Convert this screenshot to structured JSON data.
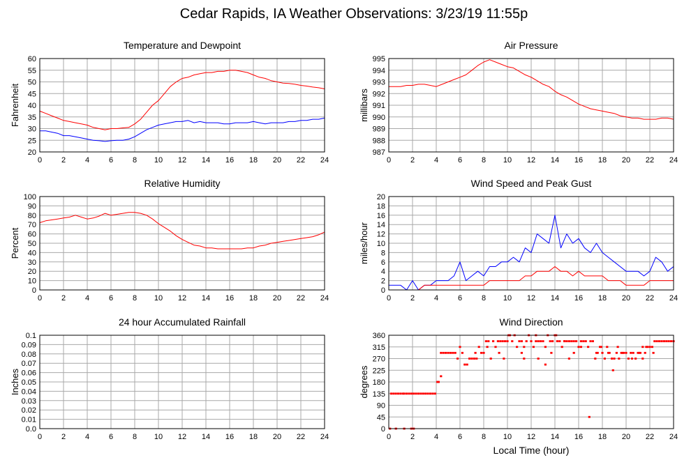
{
  "page": {
    "title": "Cedar Rapids, IA Weather Observations: 3/23/19 11:55p",
    "x_axis_label": "Local Time (hour)"
  },
  "x_ticks": [
    "0",
    "2",
    "4",
    "6",
    "8",
    "10",
    "12",
    "14",
    "16",
    "18",
    "20",
    "22",
    "24"
  ],
  "colors": {
    "red": "#ff0000",
    "blue": "#0000ff",
    "grid": "#a8a8a8",
    "frame": "#000000"
  },
  "chart_data": [
    {
      "id": "temp",
      "type": "line",
      "title": "Temperature and Dewpoint",
      "ylabel": "Fahrenheit",
      "xlim": [
        0,
        24
      ],
      "ylim": [
        20,
        60
      ],
      "y_ticks": [
        "60",
        "55",
        "50",
        "45",
        "40",
        "35",
        "30",
        "25",
        "20"
      ],
      "series": [
        {
          "color": "#ff0000",
          "x": [
            0,
            0.5,
            1,
            1.5,
            2,
            2.5,
            3,
            3.5,
            4,
            4.5,
            5,
            5.5,
            6,
            6.5,
            7,
            7.5,
            8,
            8.5,
            9,
            9.5,
            10,
            10.5,
            11,
            11.5,
            12,
            12.5,
            13,
            13.5,
            14,
            14.5,
            15,
            15.5,
            16,
            16.5,
            17,
            17.5,
            18,
            18.5,
            19,
            19.5,
            20,
            20.5,
            21,
            21.5,
            22,
            22.5,
            23,
            23.5,
            24
          ],
          "y": [
            37.5,
            36.5,
            35.5,
            34.5,
            33.5,
            33,
            32.5,
            32,
            31.5,
            30.5,
            30,
            29.5,
            30,
            30,
            30.3,
            30.5,
            32,
            34,
            37,
            40,
            42,
            45,
            48,
            50,
            51.5,
            52,
            53,
            53.5,
            54,
            54,
            54.5,
            54.5,
            55,
            55,
            54.5,
            54,
            53,
            52,
            51.5,
            50.5,
            50,
            49.5,
            49.3,
            49,
            48.5,
            48.2,
            47.8,
            47.5,
            47
          ]
        },
        {
          "color": "#0000ff",
          "x": [
            0,
            0.5,
            1,
            1.5,
            2,
            2.5,
            3,
            3.5,
            4,
            4.5,
            5,
            5.5,
            6,
            6.5,
            7,
            7.5,
            8,
            8.5,
            9,
            9.5,
            10,
            10.5,
            11,
            11.5,
            12,
            12.5,
            13,
            13.5,
            14,
            14.5,
            15,
            15.5,
            16,
            16.5,
            17,
            17.5,
            18,
            18.5,
            19,
            19.5,
            20,
            20.5,
            21,
            21.5,
            22,
            22.5,
            23,
            23.5,
            24
          ],
          "y": [
            29,
            29,
            28.5,
            28,
            27,
            27,
            26.5,
            26,
            25.5,
            25,
            24.8,
            24.5,
            24.8,
            25,
            25,
            25.5,
            26.5,
            28,
            29.5,
            30.5,
            31.5,
            32,
            32.5,
            33,
            33,
            33.5,
            32.5,
            33,
            32.5,
            32.5,
            32.5,
            32,
            32,
            32.5,
            32.5,
            32.5,
            33,
            32.5,
            32,
            32.5,
            32.5,
            32.5,
            33,
            33,
            33.5,
            33.5,
            34,
            34,
            34.5
          ]
        }
      ]
    },
    {
      "id": "pres",
      "type": "line",
      "title": "Air Pressure",
      "ylabel": "millibars",
      "xlim": [
        0,
        24
      ],
      "ylim": [
        987,
        995
      ],
      "y_ticks": [
        "995",
        "994",
        "993",
        "992",
        "991",
        "990",
        "989",
        "988",
        "987"
      ],
      "series": [
        {
          "color": "#ff0000",
          "x": [
            0,
            0.5,
            1,
            1.5,
            2,
            2.5,
            3,
            3.5,
            4,
            4.5,
            5,
            5.5,
            6,
            6.5,
            7,
            7.5,
            8,
            8.5,
            9,
            9.5,
            10,
            10.5,
            11,
            11.5,
            12,
            12.5,
            13,
            13.5,
            14,
            14.5,
            15,
            15.5,
            16,
            16.5,
            17,
            17.5,
            18,
            18.5,
            19,
            19.5,
            20,
            20.5,
            21,
            21.5,
            22,
            22.5,
            23,
            23.5,
            24
          ],
          "y": [
            992.6,
            992.6,
            992.6,
            992.7,
            992.7,
            992.8,
            992.8,
            992.7,
            992.6,
            992.8,
            993,
            993.2,
            993.4,
            993.6,
            994,
            994.4,
            994.7,
            994.9,
            994.7,
            994.5,
            994.3,
            994.2,
            993.9,
            993.6,
            993.4,
            993.1,
            992.8,
            992.6,
            992.2,
            991.9,
            991.7,
            991.4,
            991.1,
            990.9,
            990.7,
            990.6,
            990.5,
            990.4,
            990.3,
            990.1,
            990,
            989.9,
            989.9,
            989.8,
            989.8,
            989.8,
            989.9,
            989.9,
            989.8
          ]
        }
      ]
    },
    {
      "id": "rh",
      "type": "line",
      "title": "Relative Humidity",
      "ylabel": "Percent",
      "xlim": [
        0,
        24
      ],
      "ylim": [
        0,
        100
      ],
      "y_ticks": [
        "100",
        "90",
        "80",
        "70",
        "60",
        "50",
        "40",
        "30",
        "20",
        "10",
        "0"
      ],
      "series": [
        {
          "color": "#ff0000",
          "x": [
            0,
            0.5,
            1,
            1.5,
            2,
            2.5,
            3,
            3.5,
            4,
            4.5,
            5,
            5.5,
            6,
            6.5,
            7,
            7.5,
            8,
            8.5,
            9,
            9.5,
            10,
            10.5,
            11,
            11.5,
            12,
            12.5,
            13,
            13.5,
            14,
            14.5,
            15,
            15.5,
            16,
            16.5,
            17,
            17.5,
            18,
            18.5,
            19,
            19.5,
            20,
            20.5,
            21,
            21.5,
            22,
            22.5,
            23,
            23.5,
            24
          ],
          "y": [
            72,
            74,
            75,
            76,
            77,
            78,
            80,
            78,
            76,
            77,
            79,
            82,
            80,
            81,
            82,
            83,
            83,
            82,
            80,
            76,
            71,
            67,
            63,
            58,
            54,
            51,
            48,
            47,
            45,
            45,
            44,
            44,
            44,
            44,
            44,
            45,
            45,
            47,
            48,
            50,
            51,
            52,
            53,
            54,
            55,
            56,
            57,
            59,
            62
          ]
        }
      ]
    },
    {
      "id": "wind",
      "type": "line",
      "title": "Wind Speed and Peak Gust",
      "ylabel": "miles/hour",
      "xlim": [
        0,
        24
      ],
      "ylim": [
        0,
        20
      ],
      "y_ticks": [
        "20",
        "18",
        "16",
        "14",
        "12",
        "10",
        "8",
        "6",
        "4",
        "2",
        "0"
      ],
      "series": [
        {
          "color": "#0000ff",
          "x": [
            0,
            0.5,
            1,
            1.5,
            2,
            2.5,
            3,
            3.5,
            4,
            4.5,
            5,
            5.5,
            6,
            6.5,
            7,
            7.5,
            8,
            8.5,
            9,
            9.5,
            10,
            10.5,
            11,
            11.5,
            12,
            12.5,
            13,
            13.5,
            14,
            14.5,
            15,
            15.5,
            16,
            16.5,
            17,
            17.5,
            18,
            18.5,
            19,
            19.5,
            20,
            20.5,
            21,
            21.5,
            22,
            22.5,
            23,
            23.5,
            24
          ],
          "y": [
            1,
            1,
            1,
            0,
            2,
            0,
            1,
            1,
            2,
            2,
            2,
            3,
            6,
            2,
            3,
            4,
            3,
            5,
            5,
            6,
            6,
            7,
            6,
            9,
            8,
            12,
            11,
            10,
            16,
            9,
            12,
            10,
            11,
            9,
            8,
            10,
            8,
            7,
            6,
            5,
            4,
            4,
            4,
            3,
            4,
            7,
            6,
            4,
            5
          ]
        },
        {
          "color": "#ff0000",
          "x": [
            0,
            0.5,
            1,
            1.5,
            2,
            2.5,
            3,
            3.5,
            4,
            4.5,
            5,
            5.5,
            6,
            6.5,
            7,
            7.5,
            8,
            8.5,
            9,
            9.5,
            10,
            10.5,
            11,
            11.5,
            12,
            12.5,
            13,
            13.5,
            14,
            14.5,
            15,
            15.5,
            16,
            16.5,
            17,
            17.5,
            18,
            18.5,
            19,
            19.5,
            20,
            20.5,
            21,
            21.5,
            22,
            22.5,
            23,
            23.5,
            24
          ],
          "y": [
            0,
            0,
            0,
            0,
            0,
            0,
            1,
            1,
            1,
            1,
            1,
            1,
            1,
            1,
            1,
            1,
            1,
            2,
            2,
            2,
            2,
            2,
            2,
            3,
            3,
            4,
            4,
            4,
            5,
            4,
            4,
            3,
            4,
            3,
            3,
            3,
            3,
            2,
            2,
            2,
            1,
            1,
            1,
            1,
            2,
            2,
            2,
            2,
            2
          ]
        }
      ]
    },
    {
      "id": "rain",
      "type": "line",
      "title": "24 hour Accumulated Rainfall",
      "ylabel": "Inches",
      "xlim": [
        0,
        24
      ],
      "ylim": [
        0,
        0.1
      ],
      "y_ticks": [
        "0.1",
        "0.09",
        "0.08",
        "0.07",
        "0.06",
        "0.05",
        "0.04",
        "0.03",
        "0.02",
        "0.01",
        "0.0"
      ],
      "series": [
        {
          "color": "#ff0000",
          "x": [
            0,
            24
          ],
          "y": [
            0,
            0
          ]
        }
      ]
    },
    {
      "id": "wdir",
      "type": "scatter",
      "title": "Wind Direction",
      "ylabel": "degrees",
      "xlim": [
        0,
        24
      ],
      "ylim": [
        0,
        360
      ],
      "y_ticks": [
        "360",
        "315",
        "270",
        "225",
        "180",
        "135",
        "90",
        "45",
        "0"
      ],
      "series": [
        {
          "color": "#ff0000",
          "x": [
            0.2,
            0.4,
            0.6,
            0.8,
            1.0,
            1.2,
            1.3,
            1.5,
            1.7,
            1.9,
            2.1,
            2.3,
            2.5,
            2.7,
            2.9,
            3.1,
            3.3,
            3.5,
            3.7,
            3.9,
            4.1,
            4.2,
            4.4,
            4.6,
            4.8,
            5.0,
            5.2,
            5.4,
            5.6,
            5.8,
            6.0,
            6.2,
            6.4,
            6.6,
            6.8,
            7.0,
            7.2,
            7.4,
            7.6,
            7.8,
            8.0,
            8.2,
            8.4,
            8.6,
            8.8,
            9.0,
            9.2,
            9.4,
            9.6,
            9.8,
            10.0,
            10.2,
            10.4,
            10.6,
            10.8,
            11.0,
            11.2,
            11.4,
            11.6,
            11.8,
            12.0,
            12.2,
            12.4,
            12.6,
            12.8,
            13.0,
            13.2,
            13.4,
            13.6,
            13.8,
            14.0,
            14.2,
            14.4,
            14.6,
            14.8,
            15.0,
            15.2,
            15.4,
            15.6,
            15.8,
            16.0,
            16.2,
            16.4,
            16.6,
            16.8,
            17.0,
            17.2,
            17.4,
            17.6,
            17.8,
            18.0,
            18.2,
            18.4,
            18.6,
            18.8,
            19.0,
            19.2,
            19.4,
            19.6,
            19.8,
            20.0,
            20.2,
            20.4,
            20.6,
            20.8,
            21.0,
            21.2,
            21.4,
            21.6,
            21.8,
            22.0,
            22.2,
            22.4,
            22.6,
            22.8,
            23.0,
            23.2,
            23.4,
            23.6,
            23.8,
            24.0,
            0.1,
            0.6,
            1.3,
            1.9,
            2.1,
            4.4,
            7.3,
            8.3,
            9.3,
            9.7,
            10.1,
            11.2,
            11.4,
            12.4,
            12.6,
            13.2,
            13.7,
            14.1,
            14.8,
            15.2,
            15.6,
            16.2,
            16.9,
            17.5,
            17.9,
            18.5,
            18.9,
            19.3,
            19.7,
            20.5,
            21.1,
            21.4,
            21.7,
            22.3
          ],
          "y": [
            135,
            135,
            135,
            135,
            135,
            135,
            135,
            135,
            135,
            135,
            135,
            135,
            135,
            135,
            135,
            135,
            135,
            135,
            135,
            135,
            180,
            180,
            292,
            292,
            292,
            292,
            292,
            292,
            292,
            270,
            315,
            292,
            247,
            247,
            270,
            270,
            270,
            270,
            315,
            292,
            292,
            337,
            337,
            270,
            337,
            315,
            337,
            337,
            337,
            337,
            337,
            360,
            337,
            360,
            315,
            337,
            337,
            315,
            337,
            360,
            337,
            315,
            337,
            337,
            337,
            337,
            315,
            360,
            337,
            337,
            360,
            337,
            337,
            315,
            337,
            337,
            337,
            337,
            337,
            337,
            315,
            337,
            337,
            337,
            315,
            337,
            337,
            270,
            292,
            315,
            292,
            270,
            315,
            292,
            270,
            270,
            292,
            270,
            292,
            292,
            292,
            270,
            292,
            292,
            270,
            292,
            292,
            315,
            292,
            315,
            315,
            315,
            337,
            337,
            337,
            337,
            337,
            337,
            337,
            337,
            337,
            0,
            0,
            0,
            0,
            0,
            202,
            292,
            315,
            292,
            270,
            360,
            292,
            270,
            360,
            270,
            247,
            292,
            360,
            337,
            270,
            292,
            315,
            45,
            292,
            315,
            292,
            225,
            315,
            292,
            270,
            292,
            270,
            315,
            292
          ]
        }
      ]
    }
  ]
}
